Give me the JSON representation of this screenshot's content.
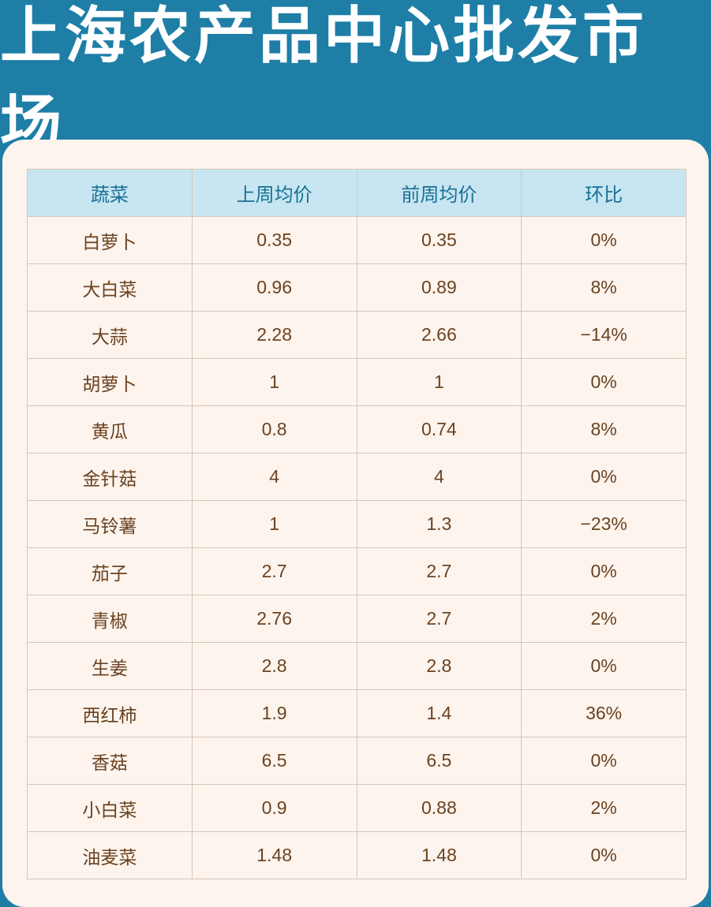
{
  "header": {
    "title": "上海农产品中心批发市场"
  },
  "table": {
    "columns": [
      "蔬菜",
      "上周均价",
      "前周均价",
      "环比"
    ],
    "rows": [
      [
        "白萝卜",
        "0.35",
        "0.35",
        "0%"
      ],
      [
        "大白菜",
        "0.96",
        "0.89",
        "8%"
      ],
      [
        "大蒜",
        "2.28",
        "2.66",
        "−14%"
      ],
      [
        "胡萝卜",
        "1",
        "1",
        "0%"
      ],
      [
        "黄瓜",
        "0.8",
        "0.74",
        "8%"
      ],
      [
        "金针菇",
        "4",
        "4",
        "0%"
      ],
      [
        "马铃薯",
        "1",
        "1.3",
        "−23%"
      ],
      [
        "茄子",
        "2.7",
        "2.7",
        "0%"
      ],
      [
        "青椒",
        "2.76",
        "2.7",
        "2%"
      ],
      [
        "生姜",
        "2.8",
        "2.8",
        "0%"
      ],
      [
        "西红柿",
        "1.9",
        "1.4",
        "36%"
      ],
      [
        "香菇",
        "6.5",
        "6.5",
        "0%"
      ],
      [
        "小白菜",
        "0.9",
        "0.88",
        "2%"
      ],
      [
        "油麦菜",
        "1.48",
        "1.48",
        "0%"
      ]
    ]
  },
  "colors": {
    "banner": "#1e7ea6",
    "card": "#fdf4ee",
    "header_row": "#c7e6f1",
    "header_text": "#1a6f95",
    "cell_text": "#6b4220"
  }
}
